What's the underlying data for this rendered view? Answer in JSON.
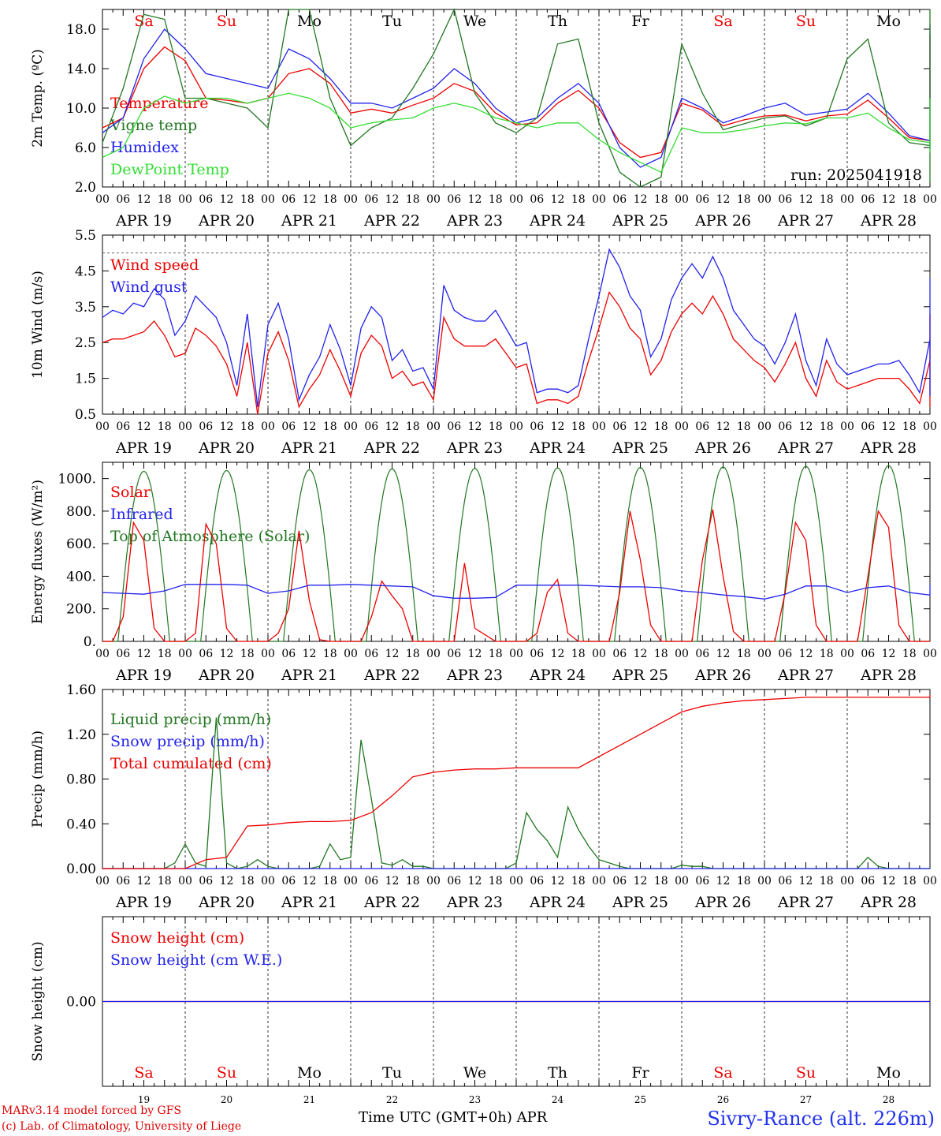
{
  "chart_data": [
    {
      "type": "line",
      "ylabel": "2m Temp. (ºC)",
      "ylim": [
        2,
        20
      ],
      "yticks": [
        "2.0",
        "6.0",
        "10.0",
        "14.0",
        "18.0"
      ],
      "ytick_values": [
        2,
        6,
        10,
        14,
        18
      ],
      "annotation": "run: 2025041918",
      "legend": [
        "Temperature",
        "Vigne temp",
        "Humidex",
        "DewPoint Temp"
      ],
      "series": [
        {
          "name": "Temperature",
          "color": "#ee0000",
          "step_h": 6,
          "values": [
            8.0,
            9.0,
            14.0,
            16.2,
            14.8,
            11.0,
            10.8,
            10.5,
            11.0,
            13.5,
            14.0,
            12.5,
            9.5,
            9.9,
            9.5,
            10.3,
            11.0,
            12.5,
            11.7,
            9.5,
            8.3,
            8.5,
            10.5,
            11.8,
            10.0,
            6.5,
            5.0,
            5.5,
            10.5,
            9.8,
            8.2,
            8.8,
            9.2,
            9.3,
            8.7,
            9.2,
            9.4,
            10.8,
            9.0,
            7.0,
            6.7,
            6.8,
            10.0,
            12.3,
            12.2,
            9.0,
            7.3,
            6.2,
            10.0,
            14.5,
            15.8,
            13.5,
            11.0,
            10.0,
            14.5,
            17.3,
            17.0,
            12.5,
            9.3,
            8.3,
            12.0,
            15.5,
            17.5,
            15.0,
            12.0
          ]
        },
        {
          "name": "Humidex",
          "color": "#2222ee",
          "step_h": 6,
          "values": [
            7.5,
            9.0,
            15.0,
            18.0,
            16.0,
            13.5,
            13.0,
            12.5,
            12.0,
            16.0,
            15.0,
            13.0,
            10.5,
            10.5,
            10.0,
            11.0,
            12.0,
            14.0,
            12.5,
            10.0,
            8.5,
            9.0,
            11.0,
            12.5,
            10.5,
            6.0,
            4.0,
            5.0,
            11.0,
            10.0,
            8.5,
            9.2,
            10.0,
            10.5,
            9.3,
            9.6,
            9.9,
            11.5,
            9.5,
            7.2,
            6.7,
            7.0,
            10.5,
            13.5,
            13.0,
            9.5,
            7.5,
            5.8,
            10.5,
            15.0,
            16.5,
            14.0,
            11.2,
            10.0,
            15.0,
            18.0,
            17.5,
            13.0,
            9.8,
            8.5,
            12.5,
            16.5,
            18.5,
            16.0,
            12.5
          ]
        },
        {
          "name": "Vigne temp",
          "color": "#227722",
          "step_h": 6,
          "values": [
            6.5,
            12.0,
            19.5,
            19.0,
            11.0,
            11.0,
            10.5,
            10.0,
            8.0,
            21.0,
            21.0,
            11.0,
            6.2,
            8.0,
            9.0,
            12.0,
            15.5,
            21.0,
            11.5,
            8.5,
            7.5,
            9.0,
            16.5,
            17.0,
            8.5,
            3.5,
            2.0,
            3.0,
            16.5,
            11.5,
            7.8,
            8.4,
            9.0,
            9.2,
            8.2,
            9.0,
            15.0,
            17.0,
            8.5,
            6.5,
            6.2,
            6.5,
            15.0,
            21.0,
            20.0,
            8.5,
            4.0,
            2.5,
            12.0,
            21.0,
            21.0,
            11.0,
            8.0,
            7.0,
            21.0,
            21.0,
            15.0,
            8.0,
            5.5,
            5.0,
            15.0,
            21.0,
            21.0,
            13.0,
            8.0
          ]
        },
        {
          "name": "DewPoint Temp",
          "color": "#33dd33",
          "step_h": 6,
          "values": [
            5.0,
            6.0,
            10.0,
            11.2,
            10.5,
            11.0,
            11.0,
            10.5,
            11.0,
            11.5,
            11.0,
            10.0,
            8.0,
            8.5,
            8.8,
            9.0,
            10.0,
            10.5,
            10.0,
            9.0,
            8.5,
            8.0,
            8.5,
            8.5,
            6.8,
            5.5,
            4.5,
            3.5,
            8.0,
            7.5,
            7.5,
            7.8,
            8.2,
            8.5,
            8.4,
            9.0,
            9.0,
            9.5,
            8.0,
            6.8,
            6.5,
            6.8,
            8.5,
            9.5,
            9.0,
            8.0,
            7.0,
            6.0,
            8.0,
            9.5,
            8.8,
            8.5,
            8.5,
            8.5,
            10.0,
            11.0,
            9.5,
            7.5,
            6.0,
            5.5,
            7.5,
            9.0,
            9.5,
            9.0,
            8.5
          ]
        }
      ]
    },
    {
      "type": "line",
      "ylabel": "10m Wind (m/s)",
      "ylim": [
        0.5,
        5.5
      ],
      "yticks": [
        "0.5",
        "1.5",
        "2.5",
        "3.5",
        "4.5",
        "5.5"
      ],
      "ytick_values": [
        0.5,
        1.5,
        2.5,
        3.5,
        4.5,
        5.5
      ],
      "reference_line": 5.0,
      "legend": [
        "Wind speed",
        "Wind gust"
      ],
      "series": [
        {
          "name": "Wind speed",
          "color": "#ee0000",
          "step_h": 3,
          "values": [
            2.5,
            2.6,
            2.6,
            2.7,
            2.8,
            3.1,
            2.7,
            2.1,
            2.2,
            2.9,
            2.7,
            2.4,
            1.9,
            1.0,
            2.5,
            0.5,
            2.2,
            2.8,
            2.0,
            0.7,
            1.2,
            1.6,
            2.3,
            1.7,
            1.0,
            2.2,
            2.7,
            2.4,
            1.5,
            1.7,
            1.3,
            1.4,
            0.9,
            3.2,
            2.6,
            2.4,
            2.4,
            2.4,
            2.6,
            2.2,
            1.8,
            1.9,
            0.8,
            0.9,
            0.9,
            0.8,
            1.0,
            2.0,
            2.9,
            3.9,
            3.5,
            2.9,
            2.6,
            1.6,
            2.0,
            2.8,
            3.3,
            3.6,
            3.3,
            3.8,
            3.3,
            2.6,
            2.3,
            2.0,
            1.8,
            1.4,
            1.9,
            2.5,
            1.5,
            1.0,
            2.0,
            1.4,
            1.2,
            1.3,
            1.4,
            1.5,
            1.5,
            1.5,
            1.2,
            0.8,
            2.0,
            2.0,
            1.5,
            1.2,
            0.7,
            0.9,
            1.0,
            1.5,
            2.6,
            3.3,
            2.8,
            3.0,
            3.0,
            1.6,
            1.5,
            1.7,
            1.8,
            2.1,
            2.5,
            2.8,
            3.0,
            2.6,
            2.3,
            1.6
          ]
        },
        {
          "name": "Wind gust",
          "color": "#2222ee",
          "step_h": 3,
          "values": [
            3.2,
            3.4,
            3.3,
            3.6,
            3.5,
            4.0,
            3.7,
            2.7,
            3.1,
            3.8,
            3.5,
            3.2,
            2.5,
            1.3,
            3.3,
            0.7,
            3.0,
            3.6,
            2.6,
            0.9,
            1.6,
            2.1,
            3.0,
            2.3,
            1.3,
            2.9,
            3.5,
            3.2,
            2.0,
            2.3,
            1.7,
            1.8,
            1.2,
            4.1,
            3.4,
            3.2,
            3.1,
            3.1,
            3.4,
            2.9,
            2.4,
            2.5,
            1.1,
            1.2,
            1.2,
            1.1,
            1.3,
            2.6,
            3.8,
            5.1,
            4.6,
            3.8,
            3.4,
            2.1,
            2.6,
            3.7,
            4.3,
            4.7,
            4.3,
            4.9,
            4.3,
            3.4,
            3.0,
            2.6,
            2.4,
            1.9,
            2.5,
            3.3,
            2.0,
            1.3,
            2.6,
            1.9,
            1.6,
            1.7,
            1.8,
            1.9,
            1.9,
            2.0,
            1.6,
            1.1,
            2.6,
            2.6,
            2.0,
            1.6,
            1.0,
            1.2,
            1.3,
            2.0,
            3.4,
            4.3,
            3.6,
            3.9,
            3.9,
            2.1,
            2.0,
            2.2,
            2.4,
            2.8,
            3.3,
            3.6,
            3.9,
            3.4,
            3.0,
            2.0
          ]
        }
      ]
    },
    {
      "type": "line",
      "ylabel": "Energy fluxes (W/m²)",
      "ylim": [
        0,
        1100
      ],
      "yticks": [
        "0.",
        "200.",
        "400.",
        "600.",
        "800.",
        "1000."
      ],
      "ytick_values": [
        0,
        200,
        400,
        600,
        800,
        1000
      ],
      "legend": [
        "Solar",
        "Infrared",
        "Top of Atmosphere (Solar)"
      ],
      "series": [
        {
          "name": "Top of Atmosphere (Solar)",
          "color": "#227722",
          "kind": "diurnal",
          "peaks": [
            1045,
            1050,
            1055,
            1060,
            1063,
            1066,
            1069,
            1072,
            1076,
            1080
          ],
          "sunrise_h": 4.5,
          "sunset_h": 19.5,
          "noon_h": 12
        },
        {
          "name": "Solar",
          "color": "#ee0000",
          "step_h": 3,
          "values": [
            0,
            0,
            150,
            730,
            620,
            80,
            0,
            0,
            0,
            50,
            720,
            600,
            80,
            0,
            0,
            0,
            0,
            50,
            200,
            680,
            250,
            10,
            0,
            0,
            0,
            0,
            150,
            370,
            280,
            200,
            0,
            0,
            0,
            0,
            0,
            480,
            80,
            40,
            0,
            0,
            0,
            0,
            50,
            300,
            380,
            50,
            0,
            0,
            0,
            0,
            300,
            800,
            500,
            100,
            0,
            0,
            0,
            0,
            500,
            810,
            400,
            60,
            0,
            0,
            0,
            0,
            300,
            730,
            620,
            100,
            0,
            0,
            0,
            0,
            400,
            800,
            700,
            100,
            0,
            0,
            0
          ]
        },
        {
          "name": "Infrared",
          "color": "#2222ee",
          "step_h": 6,
          "values": [
            300,
            295,
            290,
            310,
            350,
            350,
            350,
            345,
            295,
            310,
            345,
            345,
            350,
            345,
            340,
            335,
            280,
            265,
            265,
            270,
            345,
            345,
            345,
            345,
            340,
            335,
            335,
            330,
            310,
            300,
            285,
            275,
            260,
            290,
            340,
            340,
            300,
            330,
            340,
            300,
            285,
            280,
            290,
            310,
            350,
            290
          ]
        }
      ]
    },
    {
      "type": "line",
      "ylabel": "Precip (mm/h)",
      "ylim": [
        0,
        1.6
      ],
      "yticks": [
        "0.00",
        "0.40",
        "0.80",
        "1.20",
        "1.60"
      ],
      "ytick_values": [
        0,
        0.4,
        0.8,
        1.2,
        1.6
      ],
      "legend": [
        "Liquid precip (mm/h)",
        "Snow precip (mm/h)",
        "Total cumulated (cm)"
      ],
      "series": [
        {
          "name": "Liquid precip (mm/h)",
          "color": "#227722",
          "step_h": 3,
          "values": [
            0,
            0,
            0,
            0,
            0,
            0,
            0,
            0.05,
            0.22,
            0.05,
            0.02,
            1.35,
            0.05,
            0,
            0.02,
            0.08,
            0.02,
            0,
            0,
            0,
            0,
            0.02,
            0.22,
            0.08,
            0.1,
            1.15,
            0.62,
            0.05,
            0.03,
            0.08,
            0.02,
            0.02,
            0,
            0,
            0,
            0,
            0,
            0,
            0,
            0,
            0.05,
            0.5,
            0.35,
            0.25,
            0.1,
            0.55,
            0.35,
            0.2,
            0.08,
            0.05,
            0.02,
            0,
            0,
            0,
            0,
            0,
            0.03,
            0.02,
            0.02,
            0,
            0,
            0,
            0,
            0,
            0,
            0,
            0,
            0,
            0,
            0,
            0,
            0,
            0,
            0,
            0.1,
            0.02,
            0,
            0,
            0,
            0,
            0,
            0,
            0,
            0,
            0,
            0
          ]
        },
        {
          "name": "Snow precip (mm/h)",
          "color": "#2222ee",
          "step_h": 24,
          "values": [
            0,
            0,
            0,
            0,
            0,
            0,
            0,
            0,
            0,
            0,
            0
          ]
        },
        {
          "name": "Total cumulated (cm)",
          "color": "#ee0000",
          "step_h": 6,
          "values": [
            0,
            0,
            0,
            0,
            0,
            0.08,
            0.1,
            0.38,
            0.39,
            0.41,
            0.42,
            0.42,
            0.43,
            0.5,
            0.65,
            0.82,
            0.86,
            0.88,
            0.89,
            0.89,
            0.9,
            0.9,
            0.9,
            0.9,
            1.0,
            1.1,
            1.2,
            1.3,
            1.4,
            1.45,
            1.48,
            1.5,
            1.51,
            1.52,
            1.53,
            1.53,
            1.53,
            1.53,
            1.53,
            1.53,
            1.53,
            1.53,
            1.54,
            1.54,
            1.54,
            1.54,
            1.54,
            1.54,
            1.54,
            1.54,
            1.54,
            1.54,
            1.54,
            1.54,
            1.55,
            1.55,
            1.55,
            1.55,
            1.55,
            1.55,
            1.55,
            1.55,
            1.55
          ]
        }
      ]
    },
    {
      "type": "line",
      "ylabel": "Snow height (cm)",
      "ylim": [
        -1,
        1
      ],
      "yticks": [
        "0.00"
      ],
      "ytick_values": [
        0
      ],
      "legend": [
        "Snow height (cm)",
        "Snow height (cm W.E.)"
      ],
      "series": [
        {
          "name": "Snow height (cm)",
          "color": "#ee0000",
          "step_h": 24,
          "values": [
            0,
            0,
            0,
            0,
            0,
            0,
            0,
            0,
            0,
            0,
            0
          ]
        },
        {
          "name": "Snow height (cm W.E.)",
          "color": "#2222ee",
          "step_h": 24,
          "values": [
            0,
            0,
            0,
            0,
            0,
            0,
            0,
            0,
            0,
            0,
            0
          ]
        }
      ]
    }
  ],
  "x_axis": {
    "hour_labels": [
      "00",
      "06",
      "12",
      "18"
    ],
    "final_hour_label": "00",
    "dates": [
      "APR 19",
      "APR 20",
      "APR 21",
      "APR 22",
      "APR 23",
      "APR 24",
      "APR 25",
      "APR 26",
      "APR 27",
      "APR 28"
    ],
    "weekdays": [
      "Sa",
      "Su",
      "Mo",
      "Tu",
      "We",
      "Th",
      "Fr",
      "Sa",
      "Su",
      "Mo"
    ],
    "weekend_flags": [
      true,
      true,
      false,
      false,
      false,
      false,
      false,
      true,
      true,
      false
    ],
    "day_numbers": [
      "19",
      "20",
      "21",
      "22",
      "23",
      "24",
      "25",
      "26",
      "27",
      "28"
    ],
    "title": "Time UTC (GMT+0h) APR"
  },
  "footer": {
    "credit_1": "MARv3.14 model forced by GFS",
    "credit_2": "(c) Lab. of Climatology, University of Liege",
    "station": "Sivry-Rance (alt. 226m)"
  },
  "colors": {
    "red": "#ee0000",
    "blue": "#2222ee",
    "green": "#227722",
    "lightgreen": "#33dd33"
  }
}
